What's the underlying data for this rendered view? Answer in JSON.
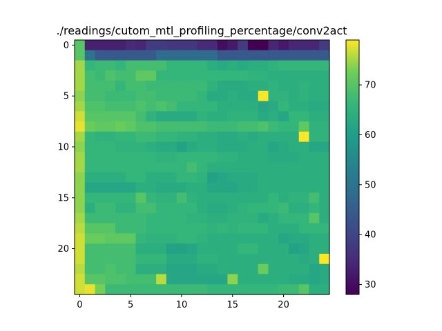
{
  "chart_data": {
    "type": "heatmap",
    "title": "./readings/cutom_mtl_profiling_percentage/conv2act",
    "xlabel": "",
    "ylabel": "",
    "colormap": "viridis",
    "vmin": 28,
    "vmax": 79,
    "x_ticks": [
      0,
      5,
      10,
      15,
      20
    ],
    "y_ticks": [
      0,
      5,
      10,
      15,
      20
    ],
    "colorbar_ticks": [
      30,
      40,
      50,
      60,
      70
    ],
    "values": [
      [
        70,
        33,
        33,
        33,
        33,
        35,
        34,
        38,
        38,
        37,
        37,
        37,
        35,
        35,
        30,
        32,
        38,
        28,
        28,
        34,
        32,
        34,
        34,
        34,
        38
      ],
      [
        70,
        50,
        44,
        44,
        44,
        44,
        44,
        44,
        48,
        48,
        48,
        48,
        48,
        48,
        44,
        44,
        44,
        44,
        44,
        44,
        44,
        44,
        44,
        44,
        44
      ],
      [
        75,
        66,
        67,
        67,
        66,
        68,
        68,
        68,
        68,
        66,
        66,
        66,
        66,
        64,
        63,
        64,
        63,
        64,
        64,
        65,
        66,
        66,
        66,
        66,
        66
      ],
      [
        75,
        68,
        67,
        69,
        68,
        68,
        71,
        71,
        66,
        66,
        66,
        66,
        66,
        66,
        66,
        66,
        66,
        65,
        65,
        64,
        64,
        64,
        64,
        64,
        64
      ],
      [
        75,
        68,
        68,
        68,
        66,
        68,
        68,
        67,
        67,
        67,
        67,
        67,
        67,
        65,
        63,
        63,
        63,
        64,
        64,
        65,
        64,
        64,
        65,
        64,
        64
      ],
      [
        74,
        68,
        68,
        67,
        67,
        67,
        68,
        68,
        67,
        67,
        67,
        67,
        66,
        63,
        63,
        64,
        63,
        63,
        79,
        65,
        65,
        64,
        65,
        64,
        64
      ],
      [
        75,
        69,
        69,
        68,
        68,
        68,
        69,
        68,
        69,
        68,
        66,
        66,
        66,
        66,
        64,
        64,
        64,
        64,
        62,
        63,
        66,
        64,
        64,
        63,
        63
      ],
      [
        77,
        70,
        70,
        70,
        70,
        70,
        68,
        65,
        63,
        63,
        63,
        63,
        65,
        64,
        64,
        65,
        65,
        65,
        63,
        64,
        62,
        66,
        66,
        64,
        64
      ],
      [
        78,
        72,
        71,
        71,
        72,
        71,
        69,
        69,
        68,
        68,
        68,
        68,
        68,
        67,
        67,
        67,
        68,
        68,
        69,
        67,
        66,
        66,
        71,
        65,
        65
      ],
      [
        75,
        66,
        65,
        65,
        66,
        66,
        67,
        67,
        66,
        66,
        65,
        65,
        64,
        64,
        63,
        63,
        64,
        63,
        64,
        64,
        64,
        64,
        79,
        65,
        65
      ],
      [
        74,
        66,
        66,
        66,
        65,
        65,
        65,
        64,
        63,
        63,
        61,
        63,
        64,
        64,
        63,
        63,
        63,
        64,
        64,
        62,
        63,
        64,
        64,
        62,
        62
      ],
      [
        75,
        66,
        66,
        66,
        66,
        66,
        66,
        66,
        65,
        65,
        66,
        66,
        66,
        66,
        65,
        65,
        64,
        64,
        64,
        63,
        63,
        63,
        64,
        64,
        64
      ],
      [
        75,
        66,
        66,
        66,
        66,
        66,
        66,
        66,
        66,
        66,
        66,
        68,
        66,
        64,
        64,
        64,
        64,
        64,
        64,
        64,
        64,
        64,
        64,
        64,
        64
      ],
      [
        74,
        64,
        64,
        64,
        64,
        66,
        66,
        64,
        64,
        64,
        66,
        66,
        65,
        61,
        62,
        63,
        63,
        63,
        64,
        64,
        64,
        64,
        64,
        64,
        64
      ],
      [
        74,
        62,
        62,
        62,
        62,
        62,
        64,
        64,
        63,
        63,
        63,
        64,
        64,
        62,
        62,
        62,
        63,
        63,
        64,
        64,
        64,
        64,
        64,
        64,
        64
      ],
      [
        74,
        66,
        66,
        66,
        66,
        66,
        70,
        66,
        65,
        65,
        68,
        65,
        64,
        64,
        64,
        64,
        64,
        64,
        64,
        66,
        64,
        65,
        65,
        68,
        64
      ],
      [
        74,
        64,
        67,
        67,
        65,
        65,
        68,
        68,
        66,
        66,
        66,
        66,
        64,
        63,
        63,
        64,
        65,
        66,
        66,
        66,
        67,
        64,
        64,
        66,
        64
      ],
      [
        75,
        67,
        67,
        67,
        67,
        67,
        67,
        66,
        66,
        66,
        66,
        65,
        65,
        64,
        64,
        65,
        65,
        65,
        63,
        64,
        66,
        66,
        66,
        70,
        64
      ],
      [
        76,
        70,
        70,
        70,
        67,
        67,
        67,
        66,
        66,
        66,
        66,
        66,
        66,
        65,
        66,
        65,
        66,
        66,
        66,
        64,
        64,
        64,
        66,
        66,
        66
      ],
      [
        77,
        72,
        72,
        71,
        71,
        71,
        66,
        65,
        65,
        65,
        66,
        66,
        65,
        64,
        64,
        64,
        64,
        64,
        64,
        64,
        62,
        63,
        63,
        64,
        64
      ],
      [
        77,
        68,
        68,
        68,
        68,
        68,
        64,
        64,
        64,
        61,
        61,
        62,
        64,
        64,
        64,
        64,
        66,
        66,
        64,
        64,
        64,
        61,
        62,
        64,
        64
      ],
      [
        77,
        68,
        68,
        68,
        68,
        68,
        66,
        66,
        66,
        63,
        63,
        63,
        65,
        65,
        64,
        64,
        64,
        64,
        64,
        64,
        64,
        64,
        63,
        64,
        79
      ],
      [
        76,
        68,
        68,
        69,
        68,
        68,
        64,
        64,
        64,
        62,
        62,
        62,
        63,
        63,
        64,
        64,
        64,
        64,
        72,
        64,
        64,
        64,
        64,
        62,
        63
      ],
      [
        77,
        70,
        70,
        69,
        69,
        68,
        68,
        68,
        76,
        62,
        62,
        62,
        62,
        62,
        62,
        74,
        64,
        64,
        64,
        64,
        64,
        63,
        63,
        62,
        63
      ],
      [
        77,
        78,
        73,
        67,
        67,
        67,
        67,
        67,
        67,
        67,
        67,
        67,
        67,
        66,
        66,
        66,
        66,
        66,
        66,
        66,
        67,
        67,
        70,
        64,
        64
      ]
    ]
  }
}
